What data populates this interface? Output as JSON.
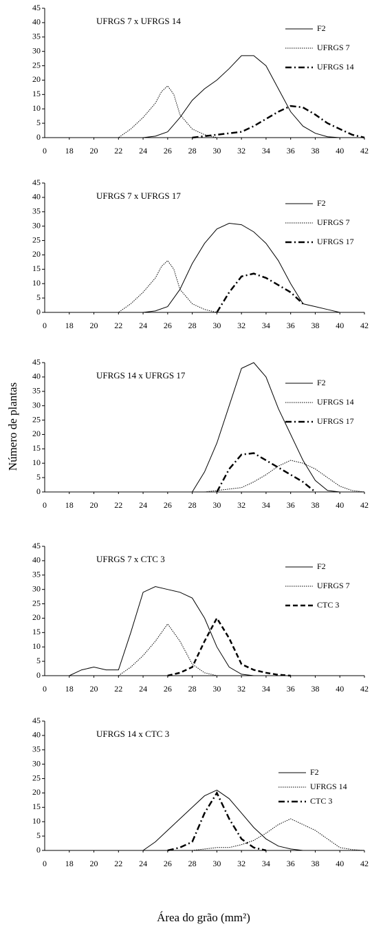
{
  "ylabel": "Número de plantas",
  "xlabel": "Área do grão (mm²)",
  "chart_data": [
    {
      "type": "line",
      "title": "UFRGS 7 x UFRGS 14",
      "xlim": [
        16,
        42
      ],
      "x_start_label": "0",
      "xticks": [
        18,
        20,
        22,
        24,
        26,
        28,
        30,
        32,
        34,
        36,
        38,
        40,
        42
      ],
      "ylim": [
        0,
        45
      ],
      "yticks": [
        0,
        5,
        10,
        15,
        20,
        25,
        30,
        35,
        40,
        45
      ],
      "legend": "upper right",
      "series": [
        {
          "name": "F2",
          "color": "#000000",
          "dash": "solid",
          "x": [
            16,
            24,
            25,
            26,
            27,
            28,
            29,
            30,
            31,
            32,
            33,
            34,
            35,
            36,
            37,
            38,
            39,
            40,
            42
          ],
          "values": [
            0,
            0,
            0.5,
            2,
            7,
            13,
            17,
            20,
            24,
            28.5,
            28.5,
            25,
            17,
            9,
            4,
            1.5,
            0.3,
            0,
            0
          ]
        },
        {
          "name": "UFRGS 7",
          "color": "#000000",
          "dash": "dotted",
          "x": [
            16,
            22,
            23,
            24,
            25,
            25.5,
            26,
            26.5,
            27,
            28,
            29,
            30
          ],
          "values": [
            0,
            0,
            3,
            7,
            12,
            16,
            18,
            15,
            8,
            3,
            1,
            0
          ]
        },
        {
          "name": "UFRGS 14",
          "color": "#000000",
          "dash": "dashdot",
          "x": [
            28,
            30,
            31,
            32,
            33,
            34,
            35,
            36,
            37,
            38,
            39,
            40,
            41,
            42
          ],
          "values": [
            0,
            1,
            1.5,
            2,
            4,
            6.5,
            9,
            11,
            10.5,
            8,
            5,
            3,
            1,
            0
          ]
        }
      ]
    },
    {
      "type": "line",
      "title": "UFRGS 7 x UFRGS 17",
      "xlim": [
        16,
        42
      ],
      "x_start_label": "0",
      "xticks": [
        18,
        20,
        22,
        24,
        26,
        28,
        30,
        32,
        34,
        36,
        38,
        40,
        42
      ],
      "ylim": [
        0,
        45
      ],
      "yticks": [
        0,
        5,
        10,
        15,
        20,
        25,
        30,
        35,
        40,
        45
      ],
      "legend": "upper right",
      "series": [
        {
          "name": "F2",
          "color": "#000000",
          "dash": "solid",
          "x": [
            16,
            24,
            25,
            26,
            27,
            28,
            29,
            30,
            31,
            32,
            33,
            34,
            35,
            36,
            37,
            38,
            39,
            40
          ],
          "values": [
            0,
            0,
            0.5,
            2,
            8,
            17,
            24,
            29,
            31,
            30.5,
            28,
            24,
            18,
            10,
            3,
            2,
            1,
            0
          ]
        },
        {
          "name": "UFRGS 7",
          "color": "#000000",
          "dash": "dotted",
          "x": [
            16,
            22,
            23,
            24,
            25,
            25.5,
            26,
            26.5,
            27,
            28,
            29,
            30
          ],
          "values": [
            0,
            0,
            3,
            7,
            12,
            16,
            18,
            15,
            8,
            3,
            1,
            0
          ]
        },
        {
          "name": "UFRGS 17",
          "color": "#000000",
          "dash": "dashdot",
          "x": [
            30,
            31,
            32,
            33,
            34,
            35,
            36,
            37
          ],
          "values": [
            0,
            7,
            12.5,
            13.5,
            12,
            9.5,
            7,
            3
          ]
        }
      ]
    },
    {
      "type": "line",
      "title": "UFRGS 14 x UFRGS 17",
      "xlim": [
        16,
        42
      ],
      "x_start_label": "0",
      "xticks": [
        18,
        20,
        22,
        24,
        26,
        28,
        30,
        32,
        34,
        36,
        38,
        40,
        42
      ],
      "ylim": [
        0,
        45
      ],
      "yticks": [
        0,
        5,
        10,
        15,
        20,
        25,
        30,
        35,
        40,
        45
      ],
      "legend": "upper right",
      "series": [
        {
          "name": "F2",
          "color": "#000000",
          "dash": "solid",
          "x": [
            16,
            28,
            29,
            30,
            31,
            32,
            33,
            34,
            35,
            36,
            37,
            38,
            39,
            40,
            41
          ],
          "values": [
            0,
            0,
            7,
            17,
            30,
            43,
            45,
            40,
            29,
            20,
            11,
            4,
            0.5,
            0,
            0
          ]
        },
        {
          "name": "UFRGS 14",
          "color": "#000000",
          "dash": "dotted",
          "x": [
            29,
            30,
            31,
            32,
            33,
            34,
            35,
            36,
            37,
            38,
            39,
            40,
            41,
            42
          ],
          "values": [
            0,
            0.5,
            1,
            1.5,
            3.5,
            6,
            9,
            11,
            10,
            8,
            5,
            2,
            0.5,
            0
          ]
        },
        {
          "name": "UFRGS 17",
          "color": "#000000",
          "dash": "dashdot",
          "x": [
            30,
            31,
            32,
            33,
            34,
            35,
            36,
            37,
            38
          ],
          "values": [
            0,
            8,
            13,
            13.5,
            11,
            8.5,
            6,
            3.5,
            0
          ]
        }
      ]
    },
    {
      "type": "line",
      "title": "UFRGS 7 x CTC 3",
      "xlim": [
        16,
        42
      ],
      "x_start_label": "0",
      "xticks": [
        18,
        20,
        22,
        24,
        26,
        28,
        30,
        32,
        34,
        36,
        38,
        40,
        42
      ],
      "ylim": [
        0,
        45
      ],
      "yticks": [
        0,
        5,
        10,
        15,
        20,
        25,
        30,
        35,
        40,
        45
      ],
      "legend": "upper right",
      "series": [
        {
          "name": "F2",
          "color": "#000000",
          "dash": "solid",
          "x": [
            16,
            18,
            19,
            20,
            21,
            22,
            23,
            24,
            25,
            26,
            27,
            28,
            29,
            30,
            31,
            32,
            33
          ],
          "values": [
            0,
            0,
            2,
            3,
            2,
            2,
            15,
            29,
            31,
            30,
            29,
            27,
            20,
            10,
            3,
            0.5,
            0
          ]
        },
        {
          "name": "UFRGS 7",
          "color": "#000000",
          "dash": "dotted",
          "x": [
            22,
            23,
            24,
            25,
            26,
            27,
            28,
            29,
            30
          ],
          "values": [
            0,
            3,
            7,
            12,
            18,
            12,
            4,
            1,
            0
          ]
        },
        {
          "name": "CTC 3",
          "color": "#000000",
          "dash": "dashed",
          "x": [
            26,
            27,
            28,
            29,
            30,
            31,
            32,
            33,
            34,
            35,
            36
          ],
          "values": [
            0,
            1,
            3,
            12,
            20,
            13,
            4,
            2,
            1,
            0.3,
            0
          ]
        }
      ]
    },
    {
      "type": "line",
      "title": "UFRGS 14 x CTC 3",
      "xlim": [
        16,
        42
      ],
      "x_start_label": "0",
      "xticks": [
        18,
        20,
        22,
        24,
        26,
        28,
        30,
        32,
        34,
        36,
        38,
        40,
        42
      ],
      "ylim": [
        0,
        45
      ],
      "yticks": [
        0,
        5,
        10,
        15,
        20,
        25,
        30,
        35,
        40,
        45
      ],
      "legend": "center right",
      "series": [
        {
          "name": "F2",
          "color": "#000000",
          "dash": "solid",
          "x": [
            16,
            24,
            25,
            26,
            27,
            28,
            29,
            30,
            31,
            32,
            33,
            34,
            35,
            36,
            37
          ],
          "values": [
            0,
            0,
            3,
            7,
            11,
            15,
            19,
            21,
            18,
            13,
            8,
            4,
            1.5,
            0.5,
            0
          ]
        },
        {
          "name": "UFRGS 14",
          "color": "#000000",
          "dash": "dotted",
          "x": [
            28,
            30,
            31,
            32,
            33,
            34,
            35,
            36,
            37,
            38,
            39,
            40,
            41,
            42
          ],
          "values": [
            0,
            1,
            1,
            2,
            3.5,
            6,
            9,
            11,
            9,
            7,
            4,
            1,
            0.3,
            0
          ]
        },
        {
          "name": "CTC 3",
          "color": "#000000",
          "dash": "dashdot",
          "x": [
            26,
            27,
            28,
            29,
            30,
            31,
            32,
            33,
            34
          ],
          "values": [
            0,
            1,
            3,
            13,
            20,
            11,
            4,
            1,
            0
          ]
        }
      ]
    }
  ]
}
